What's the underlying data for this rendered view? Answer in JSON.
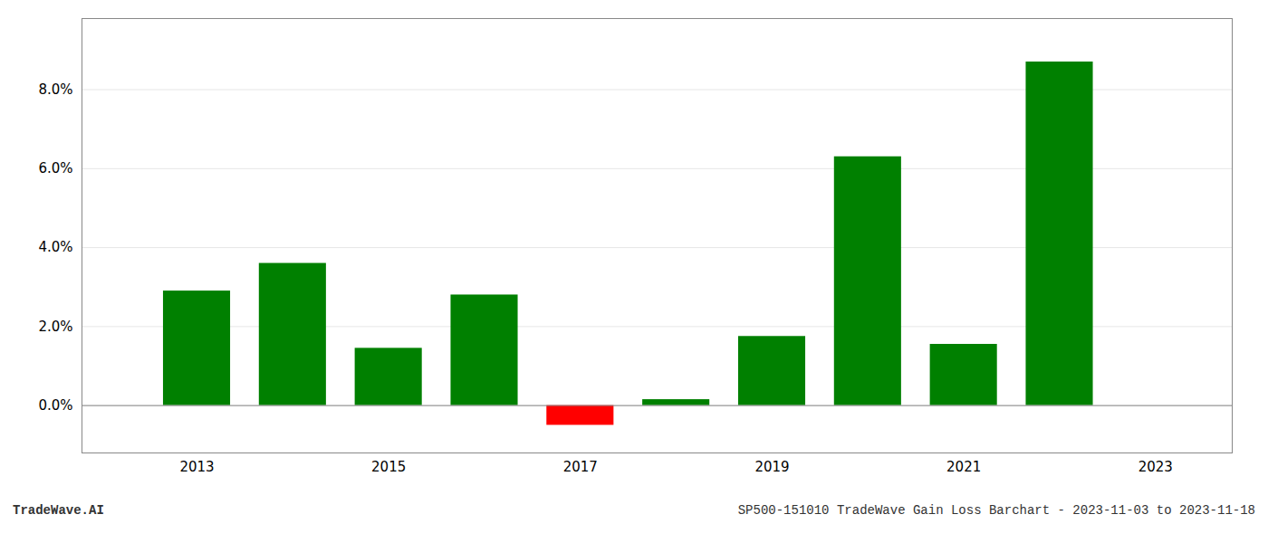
{
  "chart_data": {
    "type": "bar",
    "x": [
      2013,
      2014,
      2015,
      2016,
      2017,
      2018,
      2019,
      2020,
      2021,
      2022
    ],
    "values": [
      0.029,
      0.036,
      0.0145,
      0.028,
      -0.005,
      0.0015,
      0.0175,
      0.063,
      0.0155,
      0.087
    ],
    "colors": [
      "#008000",
      "#008000",
      "#008000",
      "#008000",
      "#ff0000",
      "#008000",
      "#008000",
      "#008000",
      "#008000",
      "#008000"
    ],
    "xlim": [
      2011.8,
      2023.8
    ],
    "xticks": [
      2013,
      2015,
      2017,
      2019,
      2021,
      2023
    ],
    "ylim": [
      -0.012,
      0.098
    ],
    "yticks": [
      {
        "value": 0.0,
        "label": "0.0%"
      },
      {
        "value": 0.02,
        "label": "2.0%"
      },
      {
        "value": 0.04,
        "label": "4.0%"
      },
      {
        "value": 0.06,
        "label": "6.0%"
      },
      {
        "value": 0.08,
        "label": "8.0%"
      }
    ],
    "grid": true,
    "annotations": [
      "TradeWave.AI",
      "SP500-151010 TradeWave Gain Loss Barchart - 2023-11-03 to 2023-11-18"
    ]
  }
}
